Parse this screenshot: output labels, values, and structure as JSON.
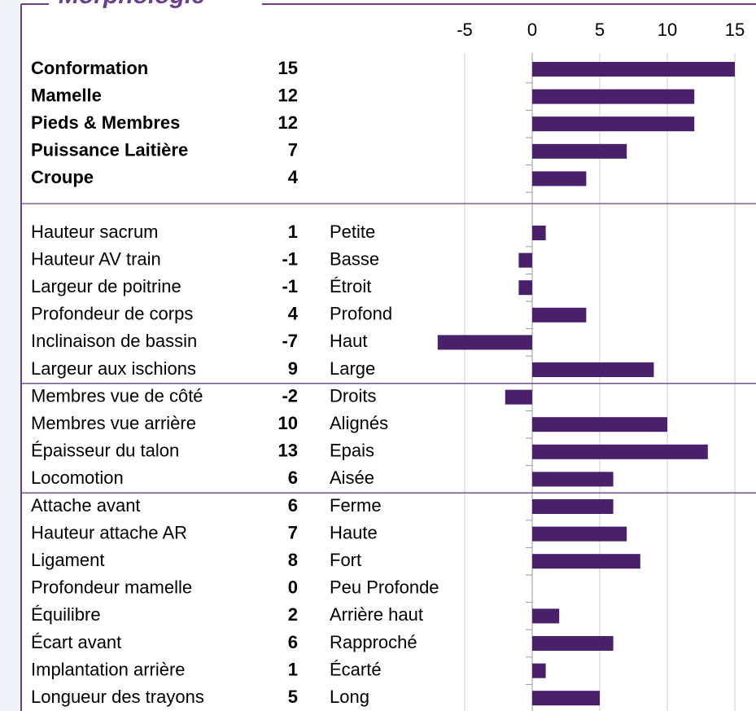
{
  "chart_data": {
    "type": "bar",
    "orientation": "horizontal",
    "title": "Morphologie",
    "color": "#4a1f6b",
    "xlim": [
      -5,
      15
    ],
    "xticks": [
      -5,
      0,
      5,
      10,
      15
    ],
    "grid": true,
    "groups": [
      {
        "categories": [
          "Conformation",
          "Mamelle",
          "Pieds & Membres",
          "Puissance Laitière",
          "Croupe"
        ],
        "values": [
          15,
          12,
          12,
          7,
          4
        ],
        "bold": true
      },
      {
        "categories": [
          "Hauteur sacrum",
          "Hauteur AV train",
          "Largeur de poitrine",
          "Profondeur de corps",
          "Inclinaison de bassin",
          "Largeur aux ischions"
        ],
        "values": [
          1,
          -1,
          -1,
          4,
          -7,
          9
        ],
        "descriptions": [
          "Petite",
          "Basse",
          "Étroit",
          "Profond",
          "Haut",
          "Large"
        ]
      },
      {
        "categories": [
          "Membres vue de côté",
          "Membres vue arrière",
          "Épaisseur du talon",
          "Locomotion"
        ],
        "values": [
          -2,
          10,
          13,
          6
        ],
        "descriptions": [
          "Droits",
          "Alignés",
          "Epais",
          "Aisée"
        ]
      },
      {
        "categories": [
          "Attache avant",
          "Hauteur attache AR",
          "Ligament",
          "Profondeur mamelle",
          "Équilibre",
          "Écart avant",
          "Implantation arrière",
          "Longueur des trayons"
        ],
        "values": [
          6,
          7,
          8,
          0,
          2,
          6,
          1,
          5
        ],
        "descriptions": [
          "Ferme",
          "Haute",
          "Fort",
          "Peu Profonde",
          "Arrière haut",
          "Rapproché",
          "Écarté",
          "Long"
        ]
      }
    ]
  }
}
